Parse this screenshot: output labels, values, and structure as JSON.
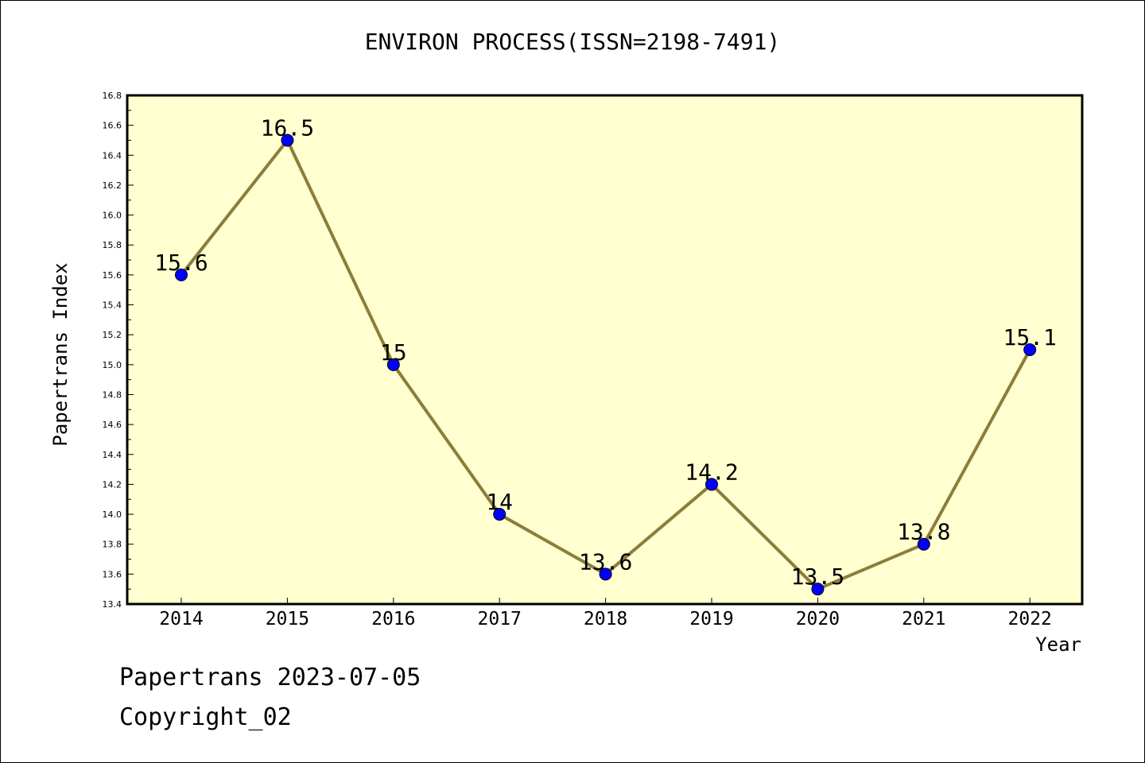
{
  "chart_data": {
    "type": "line",
    "title": "ENVIRON PROCESS(ISSN=2198-7491)",
    "xlabel": "Year",
    "ylabel": "Papertrans Index",
    "categories": [
      "2014",
      "2015",
      "2016",
      "2017",
      "2018",
      "2019",
      "2020",
      "2021",
      "2022"
    ],
    "series": [
      {
        "values": [
          15.6,
          16.5,
          15.0,
          14.0,
          13.6,
          14.2,
          13.5,
          13.8,
          15.1
        ],
        "labels": [
          "15.6",
          "16.5",
          "15",
          "14",
          "13.6",
          "14.2",
          "13.5",
          "13.8",
          "15.1"
        ],
        "line_color": "#8b7d3a",
        "marker_color": "#0000ff"
      }
    ],
    "ylim": [
      13.4,
      16.8
    ],
    "yticks": [
      "13.4",
      "13.6",
      "13.8",
      "14.0",
      "14.2",
      "14.4",
      "14.6",
      "14.8",
      "15.0",
      "15.2",
      "15.4",
      "15.6",
      "15.8",
      "16.0",
      "16.2",
      "16.4",
      "16.6",
      "16.8"
    ],
    "grid": false,
    "plot_background": "#ffffd0"
  },
  "footer": {
    "date_text": "Papertrans 2023-07-05",
    "copyright_text": "Copyright_02"
  }
}
